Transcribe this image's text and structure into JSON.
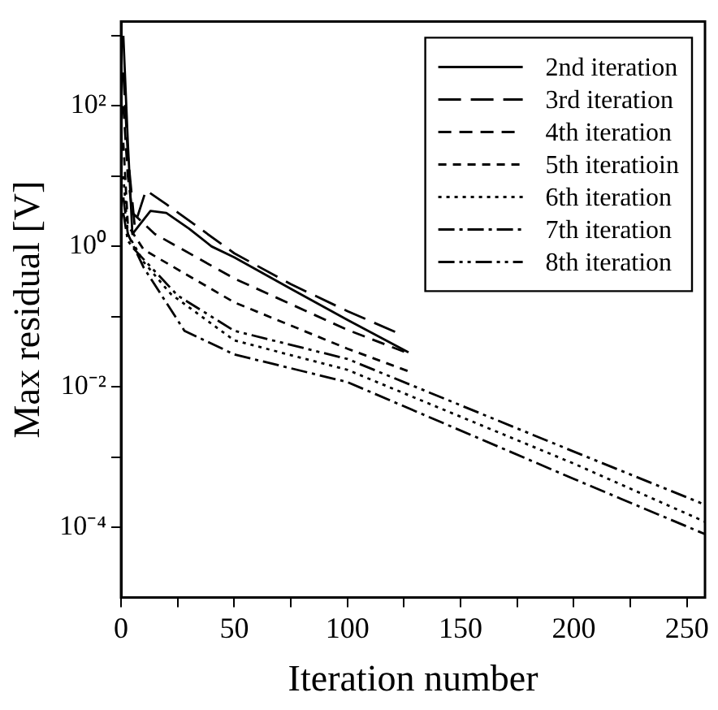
{
  "chart_data": {
    "type": "line",
    "xlabel": "Iteration number",
    "ylabel": "Max residual [V]",
    "log": "y",
    "grid": false,
    "legend": "top right",
    "marker": "none",
    "xlim": [
      0,
      258
    ],
    "xticks": [
      0,
      {
        "value": 25,
        "label": null
      },
      50,
      {
        "value": 75,
        "label": null
      },
      100,
      {
        "value": 125,
        "label": null
      },
      150,
      {
        "value": 175,
        "label": null
      },
      200,
      {
        "value": 225,
        "label": null
      },
      250
    ],
    "ylim": [
      1e-05,
      1600
    ],
    "yticks": [
      {
        "value": 0.0001,
        "label": "10⁻⁴"
      },
      {
        "value": 0.001,
        "label": null
      },
      {
        "value": 0.01,
        "label": "10⁻²"
      },
      {
        "value": 0.1,
        "label": null
      },
      {
        "value": 1,
        "label": "10⁰"
      },
      {
        "value": 10,
        "label": null
      },
      {
        "value": 100,
        "label": "10²"
      },
      {
        "value": 1000,
        "label": null
      }
    ],
    "series": [
      {
        "name": "2nd iteration",
        "color": "#000000",
        "line_style": "solid",
        "x": [
          1,
          3,
          5,
          8,
          13,
          20,
          30,
          40,
          50,
          75,
          100,
          127
        ],
        "values": [
          1000,
          30,
          1.5,
          2,
          3.2,
          3,
          1.8,
          1,
          0.7,
          0.25,
          0.09,
          0.031
        ]
      },
      {
        "name": "3rd iteration",
        "color": "#000000",
        "line_style": "longdash",
        "x": [
          1,
          3,
          6,
          11,
          20,
          50,
          75,
          100,
          123
        ],
        "values": [
          300,
          20,
          2,
          6.3,
          4,
          0.8,
          0.29,
          0.12,
          0.057
        ]
      },
      {
        "name": "4th iteration",
        "color": "#000000",
        "line_style": "dashed",
        "x": [
          1,
          3,
          5,
          15,
          50,
          100,
          127
        ],
        "values": [
          100,
          10,
          3,
          1.5,
          0.35,
          0.065,
          0.03
        ]
      },
      {
        "name": "5th iteratioin",
        "color": "#000000",
        "line_style": "shortdash",
        "x": [
          1,
          3,
          10,
          50,
          100,
          127
        ],
        "values": [
          30,
          2,
          0.9,
          0.16,
          0.035,
          0.0167
        ]
      },
      {
        "name": "6th iteration",
        "color": "#000000",
        "line_style": "dotted",
        "x": [
          1,
          3,
          10,
          22,
          50,
          100,
          200,
          258
        ],
        "values": [
          10,
          1.5,
          0.6,
          0.21,
          0.046,
          0.0175,
          0.00081,
          0.00012
        ]
      },
      {
        "name": "7th iteration",
        "color": "#000000",
        "line_style": "dashdot",
        "x": [
          1,
          3,
          10,
          28,
          50,
          100,
          200,
          258
        ],
        "values": [
          5,
          1.5,
          0.5,
          0.063,
          0.029,
          0.0117,
          0.00049,
          8e-05
        ]
      },
      {
        "name": "8th iteration",
        "color": "#000000",
        "line_style": "dashdotdot",
        "x": [
          1,
          3,
          6,
          25,
          50,
          100,
          200,
          258
        ],
        "values": [
          3,
          1.2,
          0.9,
          0.2,
          0.063,
          0.025,
          0.0012,
          0.00021
        ]
      }
    ]
  }
}
